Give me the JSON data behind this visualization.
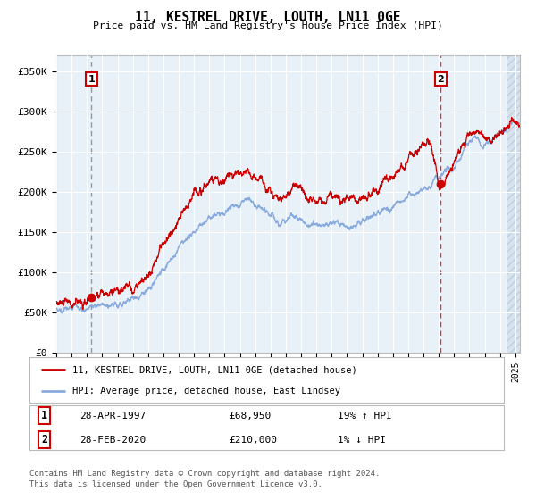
{
  "title": "11, KESTREL DRIVE, LOUTH, LN11 0GE",
  "subtitle": "Price paid vs. HM Land Registry's House Price Index (HPI)",
  "ylabel_ticks": [
    "£0",
    "£50K",
    "£100K",
    "£150K",
    "£200K",
    "£250K",
    "£300K",
    "£350K"
  ],
  "ytick_values": [
    0,
    50000,
    100000,
    150000,
    200000,
    250000,
    300000,
    350000
  ],
  "ylim": [
    0,
    370000
  ],
  "xlim_start": 1995.0,
  "xlim_end": 2025.3,
  "sale1_year": 1997.29,
  "sale1_price": 68950,
  "sale2_year": 2020.12,
  "sale2_price": 210000,
  "line1_color": "#cc0000",
  "line2_color": "#88aadd",
  "dot_color": "#cc0000",
  "vline1_color": "#999999",
  "vline2_color": "#dd3333",
  "plot_bg": "#e8f0f8",
  "grid_color": "#ffffff",
  "legend1_label": "11, KESTREL DRIVE, LOUTH, LN11 0GE (detached house)",
  "legend2_label": "HPI: Average price, detached house, East Lindsey",
  "sale1_date": "28-APR-1997",
  "sale1_pct": "19% ↑ HPI",
  "sale2_date": "28-FEB-2020",
  "sale2_pct": "1% ↓ HPI",
  "footer1": "Contains HM Land Registry data © Crown copyright and database right 2024.",
  "footer2": "This data is licensed under the Open Government Licence v3.0.",
  "hatch_start": 2024.5,
  "fig_bg": "#ffffff"
}
